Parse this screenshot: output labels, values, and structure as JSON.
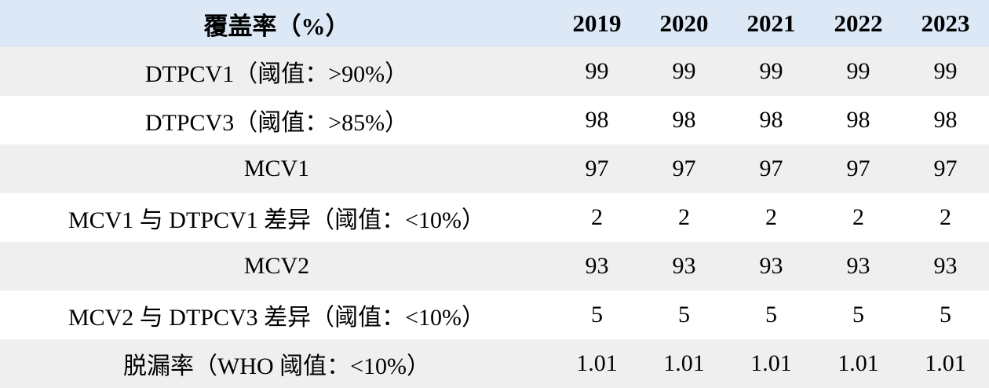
{
  "colors": {
    "header_bg": "#dce8f6",
    "row_shaded_bg": "#efefef",
    "row_plain_bg": "#ffffff"
  },
  "table": {
    "header": {
      "label": "覆盖率（%）",
      "years": [
        "2019",
        "2020",
        "2021",
        "2022",
        "2023"
      ]
    },
    "rows": [
      {
        "label": "DTPCV1（阈值：>90%）",
        "values": [
          "99",
          "99",
          "99",
          "99",
          "99"
        ]
      },
      {
        "label": "DTPCV3（阈值：>85%）",
        "values": [
          "98",
          "98",
          "98",
          "98",
          "98"
        ]
      },
      {
        "label": "MCV1",
        "values": [
          "97",
          "97",
          "97",
          "97",
          "97"
        ]
      },
      {
        "label": "MCV1 与 DTPCV1 差异（阈值：<10%）",
        "values": [
          "2",
          "2",
          "2",
          "2",
          "2"
        ]
      },
      {
        "label": "MCV2",
        "values": [
          "93",
          "93",
          "93",
          "93",
          "93"
        ]
      },
      {
        "label": "MCV2 与 DTPCV3 差异（阈值：<10%）",
        "values": [
          "5",
          "5",
          "5",
          "5",
          "5"
        ]
      },
      {
        "label": "脱漏率（WHO 阈值：<10%）",
        "values": [
          "1.01",
          "1.01",
          "1.01",
          "1.01",
          "1.01"
        ]
      }
    ]
  }
}
